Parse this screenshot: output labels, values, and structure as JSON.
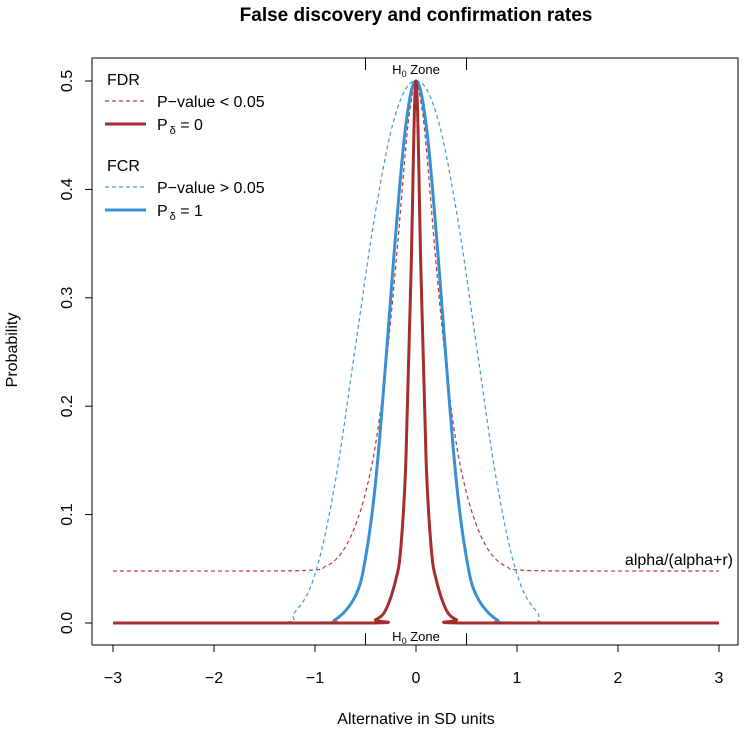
{
  "chart_data": {
    "type": "line",
    "title": "False discovery and confirmation rates",
    "xlabel": "Alternative in SD units",
    "ylabel": "Probability",
    "xlim": [
      -3,
      3
    ],
    "ylim": [
      0,
      0.5
    ],
    "xticks": [
      -3,
      -2,
      -1,
      0,
      1,
      2,
      3
    ],
    "xtick_labels": [
      "−3",
      "−2",
      "−1",
      "0",
      "1",
      "2",
      "3"
    ],
    "yticks": [
      0.0,
      0.1,
      0.2,
      0.3,
      0.4,
      0.5
    ],
    "ytick_labels": [
      "0.0",
      "0.1",
      "0.2",
      "0.3",
      "0.4",
      "0.5"
    ],
    "h0_zone": {
      "label_main": "H",
      "label_sub": "0",
      "label_rest": " Zone",
      "range": [
        -0.5,
        0.5
      ]
    },
    "annotation": "alpha/(alpha+r)",
    "legend": {
      "groups": [
        {
          "heading": "FDR",
          "entries": [
            {
              "text_main": "P−value < 0.05",
              "text_sub": "",
              "text_rest": "",
              "series": "fdr_pvalue"
            },
            {
              "text_main": "P",
              "text_sub": "δ",
              "text_rest": " = 0",
              "series": "fdr_pdelta"
            }
          ]
        },
        {
          "heading": "FCR",
          "entries": [
            {
              "text_main": "P−value > 0.05",
              "text_sub": "",
              "text_rest": "",
              "series": "fcr_pvalue"
            },
            {
              "text_main": "P",
              "text_sub": "δ",
              "text_rest": " = 1",
              "series": "fcr_pdelta"
            }
          ]
        }
      ]
    },
    "series": [
      {
        "name": "FDR P-value < 0.05",
        "key": "fdr_pvalue",
        "color": "#b5383a",
        "dashed": true,
        "thick": false,
        "x": [
          -3,
          -1.5,
          -1.0,
          -0.9,
          -0.8,
          -0.7,
          -0.6,
          -0.5,
          -0.4,
          -0.3,
          -0.2,
          -0.1,
          -0.05,
          0,
          0.05,
          0.1,
          0.2,
          0.3,
          0.4,
          0.5,
          0.6,
          0.7,
          0.8,
          0.9,
          1.0,
          1.5,
          3
        ],
        "y": [
          0.048,
          0.048,
          0.049,
          0.052,
          0.058,
          0.07,
          0.09,
          0.12,
          0.165,
          0.235,
          0.33,
          0.44,
          0.48,
          0.5,
          0.48,
          0.44,
          0.33,
          0.235,
          0.165,
          0.12,
          0.09,
          0.07,
          0.058,
          0.052,
          0.049,
          0.048,
          0.048
        ]
      },
      {
        "name": "FDR Pδ = 0",
        "key": "fdr_pdelta",
        "color": "#a62d2d",
        "dashed": false,
        "thick": true,
        "x": [
          -3,
          -0.5,
          -0.4,
          -0.3,
          -0.2,
          -0.15,
          -0.1,
          -0.05,
          0,
          0.05,
          0.1,
          0.15,
          0.2,
          0.3,
          0.4,
          0.5,
          3
        ],
        "y": [
          0,
          0.0,
          0.003,
          0.012,
          0.04,
          0.07,
          0.15,
          0.32,
          0.5,
          0.32,
          0.15,
          0.07,
          0.04,
          0.012,
          0.003,
          0.0,
          0
        ]
      },
      {
        "name": "FCR P-value > 0.05",
        "key": "fcr_pvalue",
        "color": "#3a9ad9",
        "dashed": true,
        "thick": false,
        "x": [
          -3,
          -1.4,
          -1.2,
          -1.0,
          -0.8,
          -0.6,
          -0.4,
          -0.2,
          0,
          0.2,
          0.4,
          0.6,
          0.8,
          1.0,
          1.2,
          1.4,
          3
        ],
        "y": [
          0,
          0,
          0.01,
          0.045,
          0.13,
          0.255,
          0.38,
          0.47,
          0.5,
          0.47,
          0.38,
          0.255,
          0.13,
          0.045,
          0.01,
          0,
          0
        ]
      },
      {
        "name": "FCR Pδ = 1",
        "key": "fcr_pdelta",
        "color": "#3a8fd4",
        "dashed": false,
        "thick": true,
        "x": [
          -3,
          -1.0,
          -0.8,
          -0.6,
          -0.5,
          -0.4,
          -0.3,
          -0.2,
          -0.1,
          0,
          0.1,
          0.2,
          0.3,
          0.4,
          0.5,
          0.6,
          0.8,
          1.0,
          3
        ],
        "y": [
          0,
          0,
          0.003,
          0.025,
          0.06,
          0.13,
          0.24,
          0.36,
          0.46,
          0.5,
          0.46,
          0.36,
          0.24,
          0.13,
          0.06,
          0.025,
          0.003,
          0,
          0
        ]
      }
    ]
  }
}
